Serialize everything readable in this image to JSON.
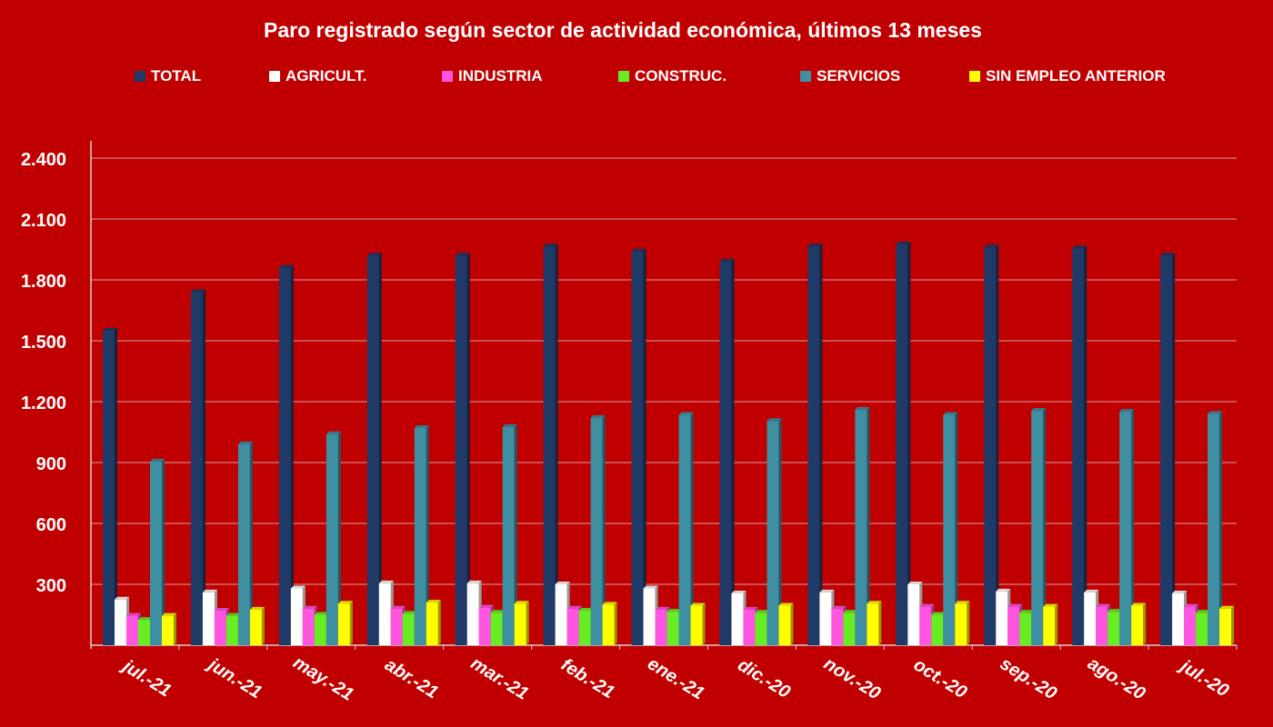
{
  "title": "Paro registrado según sector de actividad económica, últimos 13 meses",
  "chart_data": {
    "type": "bar",
    "title": "Paro registrado según sector de actividad económica, últimos 13 meses",
    "xlabel": "",
    "ylabel": "",
    "ylim": [
      0,
      2400
    ],
    "yticks": [
      "2.400",
      "2.100",
      "1.800",
      "1.500",
      "1.200",
      "900",
      "600",
      "300"
    ],
    "ytick_values": [
      2400,
      2100,
      1800,
      1500,
      1200,
      900,
      600,
      300
    ],
    "grid": true,
    "legend_position": "top",
    "categories": [
      "jul.-21",
      "jun.-21",
      "may.-21",
      "abr.-21",
      "mar.-21",
      "feb.-21",
      "ene.-21",
      "dic.-20",
      "nov.-20",
      "oct.-20",
      "sep.-20",
      "ago.-20",
      "jul.-20"
    ],
    "series": [
      {
        "name": "TOTAL",
        "color": "#1f3a66",
        "values": [
          1550,
          1740,
          1860,
          1920,
          1920,
          1965,
          1940,
          1890,
          1965,
          1975,
          1960,
          1955,
          1920
        ]
      },
      {
        "name": "AGRICULT.",
        "color": "#ffffff",
        "values": [
          225,
          260,
          280,
          305,
          305,
          300,
          280,
          255,
          260,
          300,
          265,
          260,
          255
        ]
      },
      {
        "name": "INDUSTRIA",
        "color": "#ff55e0",
        "values": [
          145,
          170,
          180,
          180,
          185,
          180,
          175,
          175,
          180,
          190,
          190,
          190,
          190
        ]
      },
      {
        "name": "CONSTRUC.",
        "color": "#66ee22",
        "values": [
          125,
          145,
          150,
          155,
          160,
          170,
          165,
          160,
          160,
          150,
          160,
          165,
          160
        ]
      },
      {
        "name": "SERVICIOS",
        "color": "#3f8fa3",
        "values": [
          905,
          990,
          1040,
          1070,
          1075,
          1120,
          1135,
          1105,
          1160,
          1135,
          1155,
          1150,
          1140
        ]
      },
      {
        "name": "SIN EMPLEO ANTERIOR",
        "color": "#ffff00",
        "values": [
          145,
          175,
          205,
          210,
          205,
          200,
          195,
          195,
          205,
          205,
          190,
          195,
          180
        ]
      }
    ]
  }
}
